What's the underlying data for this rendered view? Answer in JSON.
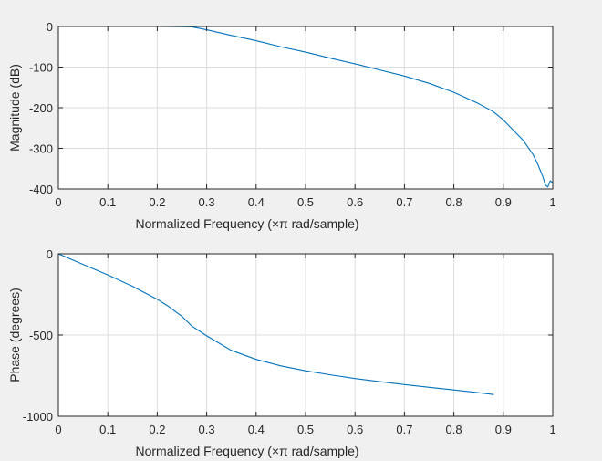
{
  "colors": {
    "figure_background": "#f0f0f0",
    "axes_background": "#ffffff",
    "line": "#0072bd",
    "grid": "#dddddd",
    "axis": "#262626"
  },
  "chart_data": [
    {
      "type": "line",
      "title": "",
      "xlabel": "Normalized Frequency  (×π rad/sample)",
      "ylabel": "Magnitude (dB)",
      "xlim": [
        0,
        1
      ],
      "ylim": [
        -400,
        0
      ],
      "xticks": [
        0,
        0.1,
        0.2,
        0.3,
        0.4,
        0.5,
        0.6,
        0.7,
        0.8,
        0.9,
        1
      ],
      "xtick_labels": [
        "0",
        "0.1",
        "0.2",
        "0.3",
        "0.4",
        "0.5",
        "0.6",
        "0.7",
        "0.8",
        "0.9",
        "1"
      ],
      "yticks": [
        0,
        -100,
        -200,
        -300,
        -400
      ],
      "ytick_labels": [
        "0",
        "-100",
        "-200",
        "-300",
        "-400"
      ],
      "grid": true,
      "series": [
        {
          "x": [
            0,
            0.05,
            0.1,
            0.15,
            0.2,
            0.25,
            0.27,
            0.3,
            0.35,
            0.4,
            0.45,
            0.5,
            0.55,
            0.6,
            0.65,
            0.7,
            0.75,
            0.8,
            0.85,
            0.88,
            0.9,
            0.92,
            0.94,
            0.96,
            0.97,
            0.98,
            0.985,
            0.99,
            0.995,
            1.0
          ],
          "y": [
            0,
            0,
            0,
            0,
            0,
            -0.5,
            -1,
            -8,
            -22,
            -35,
            -50,
            -63,
            -78,
            -92,
            -107,
            -122,
            -140,
            -162,
            -190,
            -210,
            -230,
            -255,
            -280,
            -315,
            -340,
            -370,
            -390,
            -395,
            -380,
            -385
          ]
        }
      ]
    },
    {
      "type": "line",
      "title": "",
      "xlabel": "Normalized Frequency  (×π rad/sample)",
      "ylabel": "Phase (degrees)",
      "xlim": [
        0,
        1
      ],
      "ylim": [
        -1000,
        0
      ],
      "xticks": [
        0,
        0.1,
        0.2,
        0.3,
        0.4,
        0.5,
        0.6,
        0.7,
        0.8,
        0.9,
        1
      ],
      "xtick_labels": [
        "0",
        "0.1",
        "0.2",
        "0.3",
        "0.4",
        "0.5",
        "0.6",
        "0.7",
        "0.8",
        "0.9",
        "1"
      ],
      "yticks": [
        0,
        -500,
        -1000
      ],
      "ytick_labels": [
        "0",
        "-500",
        "-1000"
      ],
      "grid": true,
      "series": [
        {
          "x": [
            0,
            0.05,
            0.1,
            0.15,
            0.2,
            0.22,
            0.25,
            0.27,
            0.3,
            0.35,
            0.4,
            0.45,
            0.5,
            0.55,
            0.6,
            0.65,
            0.7,
            0.75,
            0.8,
            0.85,
            0.88
          ],
          "y": [
            0,
            -65,
            -130,
            -200,
            -280,
            -318,
            -385,
            -445,
            -505,
            -595,
            -650,
            -690,
            -720,
            -745,
            -768,
            -787,
            -805,
            -822,
            -838,
            -855,
            -866
          ]
        }
      ]
    }
  ]
}
